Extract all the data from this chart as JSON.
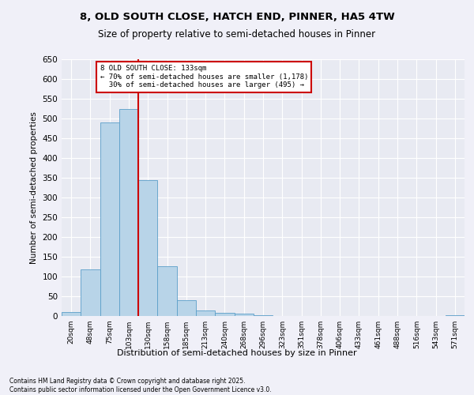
{
  "title_line1": "8, OLD SOUTH CLOSE, HATCH END, PINNER, HA5 4TW",
  "title_line2": "Size of property relative to semi-detached houses in Pinner",
  "xlabel": "Distribution of semi-detached houses by size in Pinner",
  "ylabel": "Number of semi-detached properties",
  "categories": [
    "20sqm",
    "48sqm",
    "75sqm",
    "103sqm",
    "130sqm",
    "158sqm",
    "185sqm",
    "213sqm",
    "240sqm",
    "268sqm",
    "296sqm",
    "323sqm",
    "351sqm",
    "378sqm",
    "406sqm",
    "433sqm",
    "461sqm",
    "488sqm",
    "516sqm",
    "543sqm",
    "571sqm"
  ],
  "values": [
    10,
    118,
    490,
    523,
    343,
    127,
    40,
    15,
    8,
    7,
    3,
    1,
    0,
    0,
    0,
    0,
    0,
    0,
    0,
    0,
    3
  ],
  "bar_color": "#b8d4e8",
  "bar_edge_color": "#5b9ec9",
  "background_color": "#e8eaf2",
  "grid_color": "#ffffff",
  "property_label": "8 OLD SOUTH CLOSE: 133sqm",
  "pct_smaller": 70,
  "count_smaller": 1178,
  "pct_larger": 30,
  "count_larger": 495,
  "vline_x_index": 3.5,
  "annotation_box_color": "#ffffff",
  "annotation_box_edge": "#cc0000",
  "vline_color": "#cc0000",
  "footer_line1": "Contains HM Land Registry data © Crown copyright and database right 2025.",
  "footer_line2": "Contains public sector information licensed under the Open Government Licence v3.0.",
  "fig_bg": "#f0f0f8",
  "ylim": [
    0,
    650
  ],
  "yticks": [
    0,
    50,
    100,
    150,
    200,
    250,
    300,
    350,
    400,
    450,
    500,
    550,
    600,
    650
  ]
}
